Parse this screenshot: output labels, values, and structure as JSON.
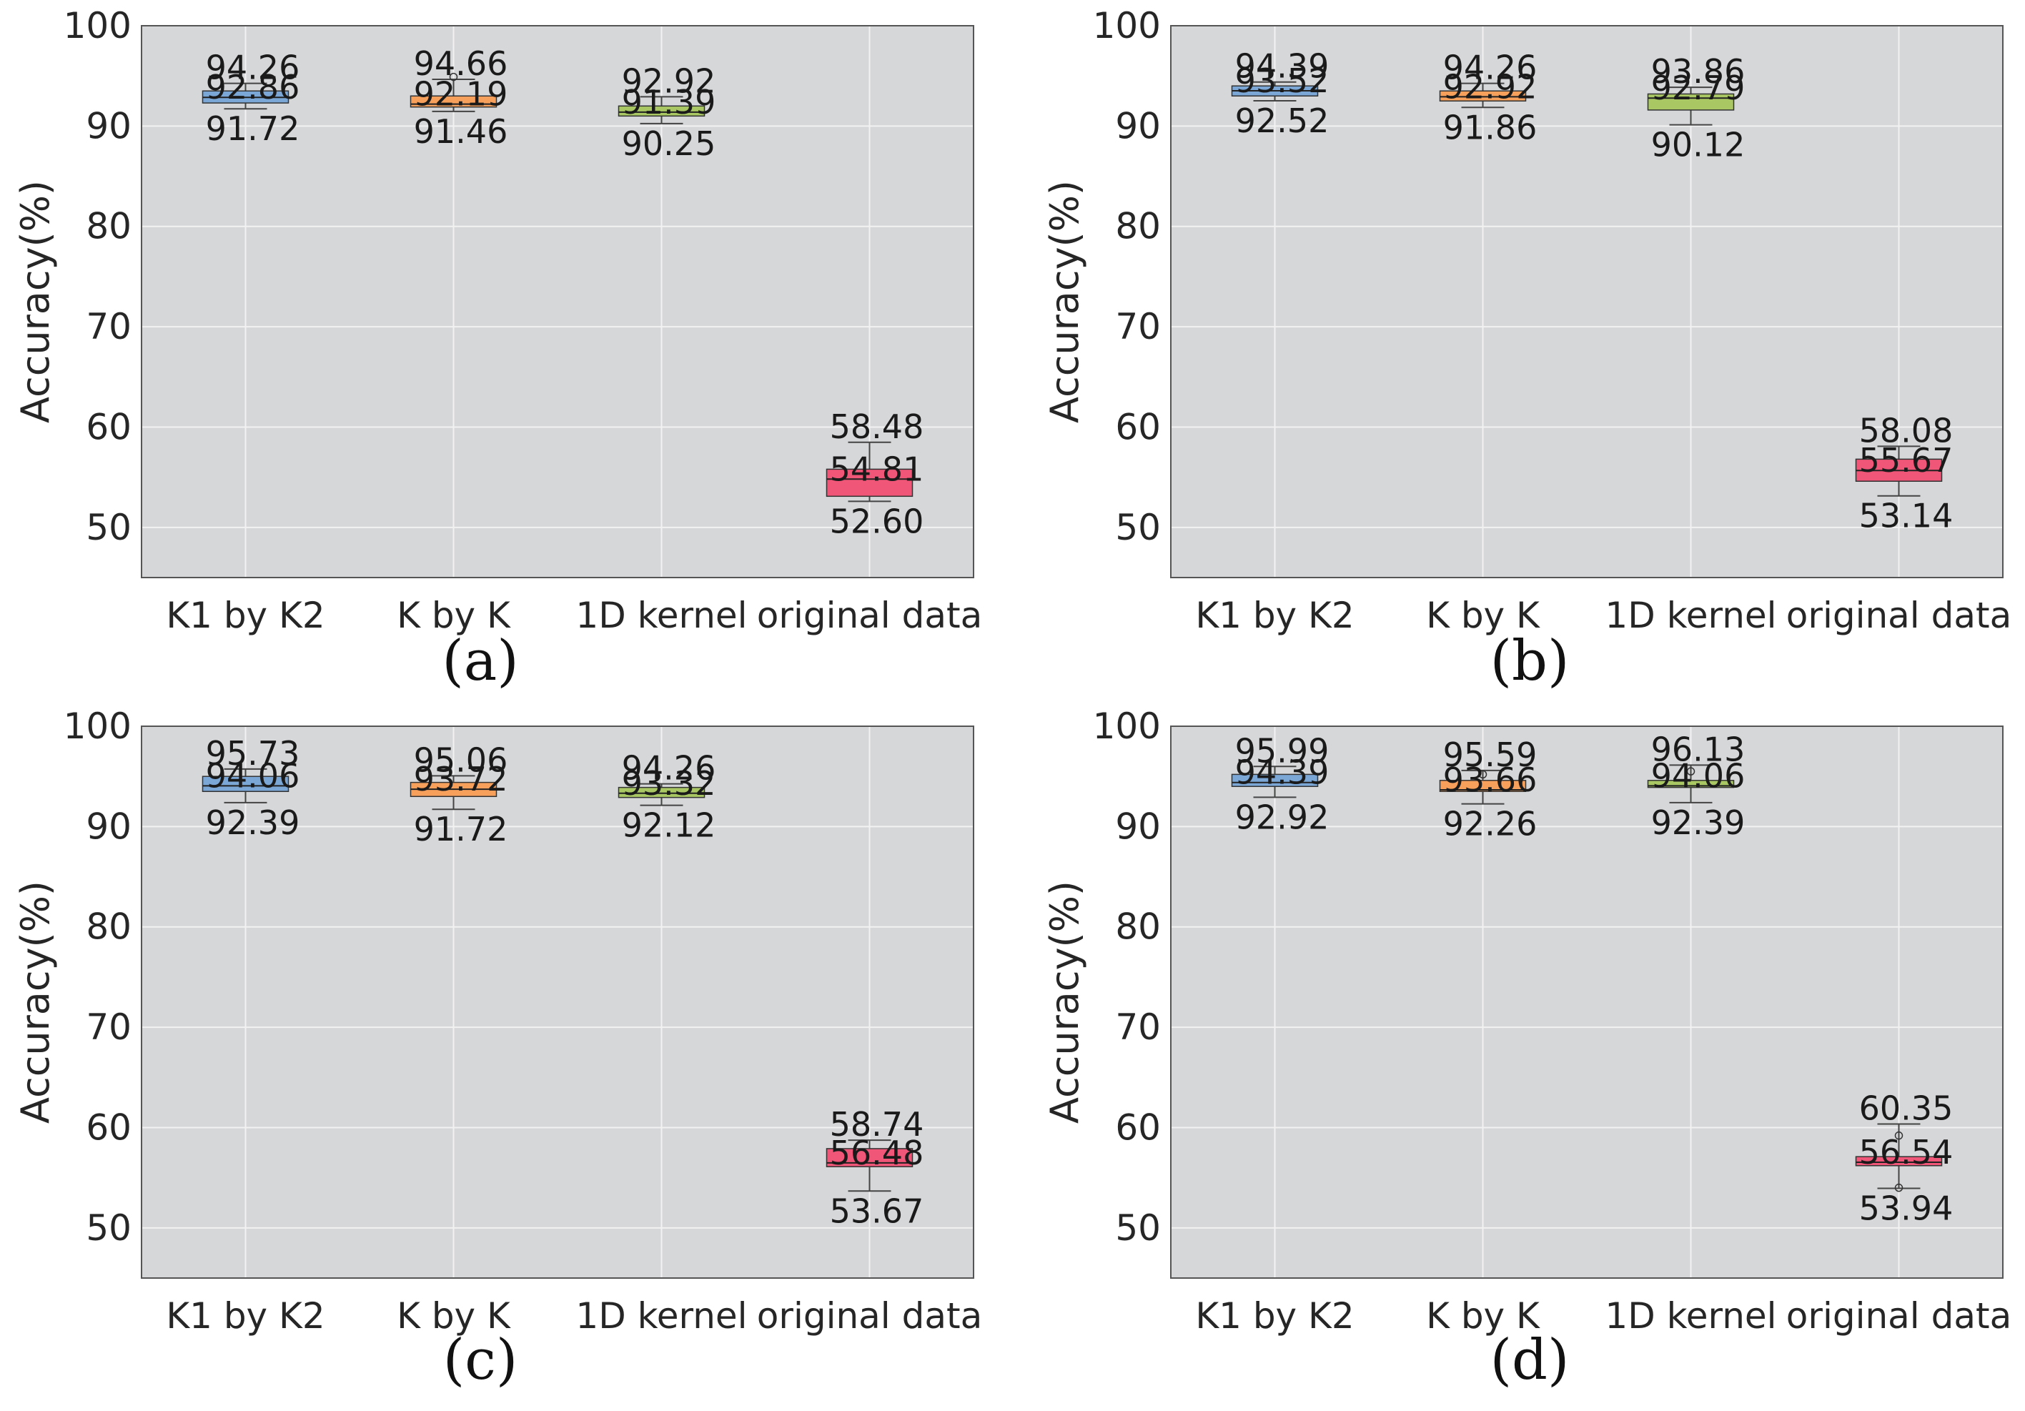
{
  "colors": {
    "plot_background": "#d6d7d9",
    "grid": "#f2f2f2",
    "axis_frame": "#555555",
    "whisker": "#444444",
    "box_fills": [
      "#7ba7d7",
      "#f7a05c",
      "#a9c864",
      "#ef5677"
    ]
  },
  "chart_data": [
    {
      "panel": "(a)",
      "type": "box",
      "ylabel": "Accuracy(%)",
      "ylim": [
        45,
        100
      ],
      "yticks": [
        "100",
        "90",
        "80",
        "70",
        "60",
        "50"
      ],
      "categories": [
        "K1 by K2",
        "K by K",
        "1D kernel",
        "original data"
      ],
      "grid": true,
      "boxes": [
        {
          "max": 94.26,
          "q3": 93.5,
          "median": 92.86,
          "q1": 92.3,
          "min": 91.72,
          "labels": {
            "max": "94.26",
            "median": "92.86",
            "min": "91.72"
          }
        },
        {
          "max": 94.66,
          "q3": 93.0,
          "median": 92.19,
          "q1": 91.9,
          "min": 91.46,
          "outliers": [
            94.9
          ],
          "labels": {
            "max": "94.66",
            "median": "92.19",
            "min": "91.46"
          }
        },
        {
          "max": 92.92,
          "q3": 92.0,
          "median": 91.39,
          "q1": 91.0,
          "min": 90.25,
          "labels": {
            "max": "92.92",
            "median": "91.39",
            "min": "90.25"
          }
        },
        {
          "max": 58.48,
          "q3": 55.8,
          "median": 54.81,
          "q1": 53.1,
          "min": 52.6,
          "labels": {
            "max": "58.48",
            "median": "54.81",
            "min": "52.60"
          }
        }
      ]
    },
    {
      "panel": "(b)",
      "type": "box",
      "ylabel": "Accuracy(%)",
      "ylim": [
        45,
        100
      ],
      "yticks": [
        "100",
        "90",
        "80",
        "70",
        "60",
        "50"
      ],
      "categories": [
        "K1 by K2",
        "K by K",
        "1D kernel",
        "original data"
      ],
      "grid": true,
      "boxes": [
        {
          "max": 94.39,
          "q3": 94.0,
          "median": 93.52,
          "q1": 93.0,
          "min": 92.52,
          "labels": {
            "max": "94.39",
            "median": "93.52",
            "min": "92.52"
          }
        },
        {
          "max": 94.26,
          "q3": 93.5,
          "median": 92.92,
          "q1": 92.5,
          "min": 91.86,
          "labels": {
            "max": "94.26",
            "median": "92.92",
            "min": "91.86"
          }
        },
        {
          "max": 93.86,
          "q3": 93.2,
          "median": 92.79,
          "q1": 91.6,
          "min": 90.12,
          "labels": {
            "max": "93.86",
            "median": "92.79",
            "min": "90.12"
          }
        },
        {
          "max": 58.08,
          "q3": 56.8,
          "median": 55.67,
          "q1": 54.6,
          "min": 53.14,
          "labels": {
            "max": "58.08",
            "median": "55.67",
            "min": "53.14"
          }
        }
      ]
    },
    {
      "panel": "(c)",
      "type": "box",
      "ylabel": "Accuracy(%)",
      "ylim": [
        45,
        100
      ],
      "yticks": [
        "100",
        "90",
        "80",
        "70",
        "60",
        "50"
      ],
      "categories": [
        "K1 by K2",
        "K by K",
        "1D kernel",
        "original data"
      ],
      "grid": true,
      "boxes": [
        {
          "max": 95.73,
          "q3": 95.0,
          "median": 94.06,
          "q1": 93.5,
          "min": 92.39,
          "labels": {
            "max": "95.73",
            "median": "94.06",
            "min": "92.39"
          }
        },
        {
          "max": 95.06,
          "q3": 94.4,
          "median": 93.72,
          "q1": 93.0,
          "min": 91.72,
          "labels": {
            "max": "95.06",
            "median": "93.72",
            "min": "91.72"
          }
        },
        {
          "max": 94.26,
          "q3": 93.9,
          "median": 93.32,
          "q1": 92.9,
          "min": 92.12,
          "labels": {
            "max": "94.26",
            "median": "93.32",
            "min": "92.12"
          }
        },
        {
          "max": 58.74,
          "q3": 57.9,
          "median": 56.48,
          "q1": 56.1,
          "min": 53.67,
          "labels": {
            "max": "58.74",
            "median": "56.48",
            "min": "53.67"
          }
        }
      ]
    },
    {
      "panel": "(d)",
      "type": "box",
      "ylabel": "Accuracy(%)",
      "ylim": [
        45,
        100
      ],
      "yticks": [
        "100",
        "90",
        "80",
        "70",
        "60",
        "50"
      ],
      "categories": [
        "K1 by K2",
        "K by K",
        "1D kernel",
        "original data"
      ],
      "grid": true,
      "boxes": [
        {
          "max": 95.99,
          "q3": 95.2,
          "median": 94.39,
          "q1": 94.0,
          "min": 92.92,
          "labels": {
            "max": "95.99",
            "median": "94.39",
            "min": "92.92"
          }
        },
        {
          "max": 95.59,
          "q3": 94.6,
          "median": 93.66,
          "q1": 93.5,
          "min": 92.26,
          "outliers": [
            95.2
          ],
          "labels": {
            "max": "95.59",
            "median": "93.66",
            "min": "92.26"
          }
        },
        {
          "max": 96.13,
          "q3": 94.6,
          "median": 94.06,
          "q1": 93.9,
          "min": 92.39,
          "outliers": [
            95.5
          ],
          "labels": {
            "max": "96.13",
            "median": "94.06",
            "min": "92.39"
          }
        },
        {
          "max": 60.35,
          "q3": 57.1,
          "median": 56.54,
          "q1": 56.2,
          "min": 53.94,
          "outliers": [
            59.2,
            54.0
          ],
          "labels": {
            "max": "60.35",
            "median": "56.54",
            "min": "53.94"
          }
        }
      ]
    }
  ]
}
